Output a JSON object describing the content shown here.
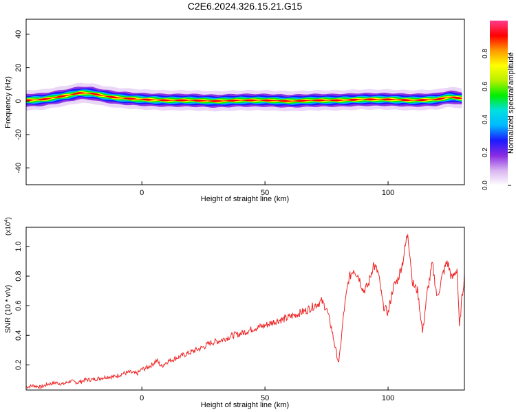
{
  "figure": {
    "title": "C2E6.2024.326.15.21.G15"
  },
  "chart_data": [
    {
      "type": "heatmap",
      "xlabel": "Height of straight line (km)",
      "ylabel": "Frequency (Hz)",
      "xlim": [
        -47,
        131
      ],
      "ylim": [
        -50,
        49
      ],
      "xticks": [
        0,
        50,
        100
      ],
      "yticks": [
        -40,
        -20,
        0,
        20,
        40
      ],
      "colorbar": {
        "label": "Normalized spectral amplitude",
        "range": [
          0,
          1
        ],
        "ticks": [
          0.0,
          0.2,
          0.4,
          0.6,
          0.8
        ],
        "colormap": [
          "#ffffff",
          "#d8b4f0",
          "#8a2be2",
          "#1a1aff",
          "#00b8ff",
          "#00e0e0",
          "#00ee00",
          "#b8f000",
          "#ffff00",
          "#ff9900",
          "#ff0000",
          "#ff3c8c"
        ]
      },
      "ridge": {
        "note_x": [
          -47,
          -40,
          -30,
          -25,
          -20,
          -15,
          -10,
          0,
          10,
          20,
          30,
          40,
          50,
          60,
          70,
          80,
          90,
          100,
          110,
          120,
          125,
          131
        ],
        "center_hz": [
          0.5,
          1.0,
          3.5,
          5.0,
          4.5,
          3.0,
          2.0,
          1.0,
          0.5,
          0.5,
          0.0,
          0.5,
          0.5,
          0.0,
          0.5,
          0.5,
          1.0,
          1.0,
          0.5,
          1.0,
          2.5,
          1.5
        ]
      }
    },
    {
      "type": "line",
      "xlabel": "Height of straight line (km)",
      "ylabel": "SNR (10 * v/v)",
      "multiplier": "(x10",
      "multiplier_exp": "4",
      "multiplier_close": ")",
      "xlim": [
        -47,
        131
      ],
      "ylim": [
        0.03,
        1.13
      ],
      "xticks": [
        0,
        50,
        100
      ],
      "yticks": [
        0.2,
        0.4,
        0.6,
        0.8,
        1.0
      ],
      "color": "#ee2222",
      "series": [
        {
          "x": [
            -47,
            -44,
            -41,
            -38,
            -35,
            -32,
            -29,
            -26,
            -23,
            -20,
            -17,
            -14,
            -11,
            -8,
            -5,
            -2,
            0,
            2,
            4,
            6,
            8,
            10,
            13,
            16,
            19,
            22,
            25,
            28,
            31,
            34,
            37,
            40,
            43,
            46,
            49,
            52,
            55,
            58,
            61,
            64,
            67,
            70,
            73,
            75,
            77,
            79,
            80,
            82,
            84,
            86,
            88,
            90,
            92,
            94,
            96,
            98,
            100,
            102,
            104,
            106,
            108,
            110,
            112,
            114,
            116,
            118,
            120,
            122,
            124,
            126,
            128,
            129,
            130,
            131
          ],
          "y": [
            0.05,
            0.06,
            0.05,
            0.07,
            0.08,
            0.07,
            0.09,
            0.08,
            0.1,
            0.1,
            0.11,
            0.12,
            0.12,
            0.14,
            0.15,
            0.14,
            0.17,
            0.18,
            0.2,
            0.23,
            0.19,
            0.22,
            0.24,
            0.26,
            0.28,
            0.3,
            0.32,
            0.35,
            0.36,
            0.38,
            0.4,
            0.41,
            0.43,
            0.45,
            0.46,
            0.48,
            0.5,
            0.51,
            0.53,
            0.55,
            0.57,
            0.6,
            0.63,
            0.58,
            0.45,
            0.28,
            0.21,
            0.55,
            0.78,
            0.85,
            0.8,
            0.7,
            0.74,
            0.88,
            0.82,
            0.6,
            0.55,
            0.72,
            0.78,
            0.9,
            1.1,
            0.75,
            0.7,
            0.42,
            0.7,
            0.88,
            0.65,
            0.8,
            0.9,
            0.78,
            0.85,
            0.45,
            0.65,
            0.8
          ]
        }
      ]
    }
  ]
}
